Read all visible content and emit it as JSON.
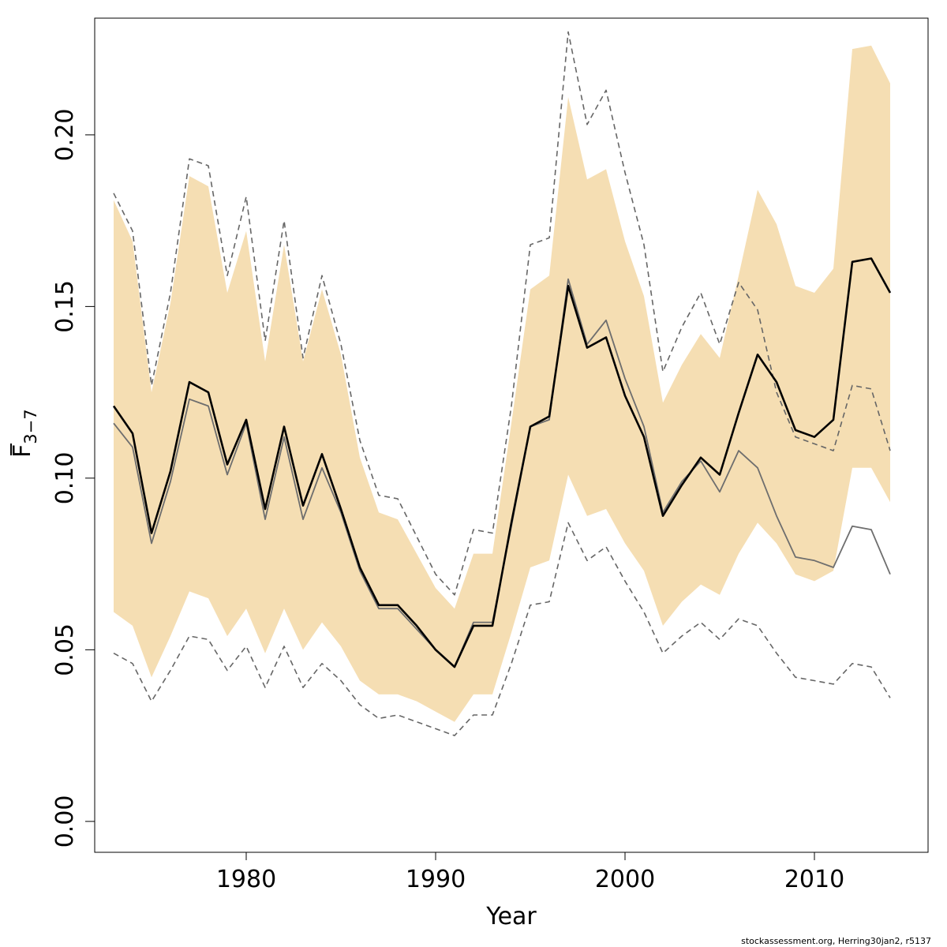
{
  "chart_data": {
    "type": "line",
    "xlabel": "Year",
    "ylabel_main": "F",
    "ylabel_sub": "3−7",
    "xlim": [
      1972,
      2016
    ],
    "ylim": [
      -0.009,
      0.234
    ],
    "xticks": [
      1980,
      1990,
      2000,
      2010
    ],
    "xtick_labels": [
      "1980",
      "1990",
      "2000",
      "2010"
    ],
    "yticks": [
      0.0,
      0.05,
      0.1,
      0.15,
      0.2
    ],
    "ytick_labels": [
      "0.00",
      "0.05",
      "0.10",
      "0.15",
      "0.20"
    ],
    "grid": false,
    "x": [
      1973,
      1974,
      1975,
      1976,
      1977,
      1978,
      1979,
      1980,
      1981,
      1982,
      1983,
      1984,
      1985,
      1986,
      1987,
      1988,
      1989,
      1990,
      1991,
      1992,
      1993,
      1994,
      1995,
      1996,
      1997,
      1998,
      1999,
      2000,
      2001,
      2002,
      2003,
      2004,
      2005,
      2006,
      2007,
      2008,
      2009,
      2010,
      2011,
      2012,
      2013,
      2014
    ],
    "series": [
      {
        "role": "band-upper",
        "color": "#f5deb3",
        "values": [
          0.181,
          0.169,
          0.125,
          0.151,
          0.188,
          0.185,
          0.154,
          0.172,
          0.134,
          0.168,
          0.134,
          0.155,
          0.136,
          0.106,
          0.09,
          0.088,
          0.078,
          0.068,
          0.062,
          0.078,
          0.078,
          0.116,
          0.155,
          0.159,
          0.211,
          0.187,
          0.19,
          0.169,
          0.153,
          0.122,
          0.133,
          0.142,
          0.135,
          0.159,
          0.184,
          0.174,
          0.156,
          0.154,
          0.161,
          0.225,
          0.226,
          0.215
        ]
      },
      {
        "role": "band-lower",
        "color": "#f5deb3",
        "values": [
          0.061,
          0.057,
          0.042,
          0.054,
          0.067,
          0.065,
          0.054,
          0.062,
          0.049,
          0.062,
          0.05,
          0.058,
          0.051,
          0.041,
          0.037,
          0.037,
          0.035,
          0.032,
          0.029,
          0.037,
          0.037,
          0.055,
          0.074,
          0.076,
          0.101,
          0.089,
          0.091,
          0.081,
          0.073,
          0.057,
          0.064,
          0.069,
          0.066,
          0.078,
          0.087,
          0.081,
          0.072,
          0.07,
          0.073,
          0.103,
          0.103,
          0.093
        ]
      },
      {
        "role": "dashed-upper",
        "color": "#666666",
        "values": [
          0.183,
          0.172,
          0.127,
          0.154,
          0.193,
          0.191,
          0.159,
          0.182,
          0.14,
          0.175,
          0.135,
          0.159,
          0.139,
          0.111,
          0.095,
          0.094,
          0.083,
          0.072,
          0.066,
          0.085,
          0.084,
          0.121,
          0.168,
          0.17,
          0.23,
          0.203,
          0.213,
          0.189,
          0.168,
          0.131,
          0.144,
          0.154,
          0.139,
          0.157,
          0.149,
          0.125,
          0.112,
          0.11,
          0.108,
          0.127,
          0.126,
          0.108
        ]
      },
      {
        "role": "dashed-lower",
        "color": "#666666",
        "values": [
          0.049,
          0.046,
          0.035,
          0.044,
          0.054,
          0.053,
          0.044,
          0.051,
          0.039,
          0.051,
          0.039,
          0.046,
          0.041,
          0.034,
          0.03,
          0.031,
          0.029,
          0.027,
          0.025,
          0.031,
          0.031,
          0.046,
          0.063,
          0.064,
          0.087,
          0.076,
          0.08,
          0.07,
          0.061,
          0.049,
          0.054,
          0.058,
          0.053,
          0.059,
          0.057,
          0.049,
          0.042,
          0.041,
          0.04,
          0.046,
          0.045,
          0.036
        ]
      },
      {
        "role": "thin-line",
        "color": "#6e6e6e",
        "values": [
          0.116,
          0.109,
          0.081,
          0.099,
          0.123,
          0.121,
          0.101,
          0.116,
          0.088,
          0.112,
          0.088,
          0.103,
          0.09,
          0.073,
          0.062,
          0.062,
          0.056,
          0.05,
          0.045,
          0.058,
          0.058,
          0.086,
          0.115,
          0.117,
          0.158,
          0.139,
          0.146,
          0.129,
          0.115,
          0.09,
          0.099,
          0.105,
          0.096,
          0.108,
          0.103,
          0.089,
          0.077,
          0.076,
          0.074,
          0.086,
          0.085,
          0.072
        ]
      },
      {
        "role": "main-line",
        "color": "#000000",
        "values": [
          0.121,
          0.113,
          0.084,
          0.102,
          0.128,
          0.125,
          0.104,
          0.117,
          0.091,
          0.115,
          0.092,
          0.107,
          0.091,
          0.074,
          0.063,
          0.063,
          0.057,
          0.05,
          0.045,
          0.057,
          0.057,
          0.087,
          0.115,
          0.118,
          0.156,
          0.138,
          0.141,
          0.124,
          0.112,
          0.089,
          0.098,
          0.106,
          0.101,
          0.119,
          0.136,
          0.128,
          0.114,
          0.112,
          0.117,
          0.163,
          0.164,
          0.154
        ]
      }
    ]
  },
  "credit": "stockassessment.org, Herring30jan2, r5137"
}
